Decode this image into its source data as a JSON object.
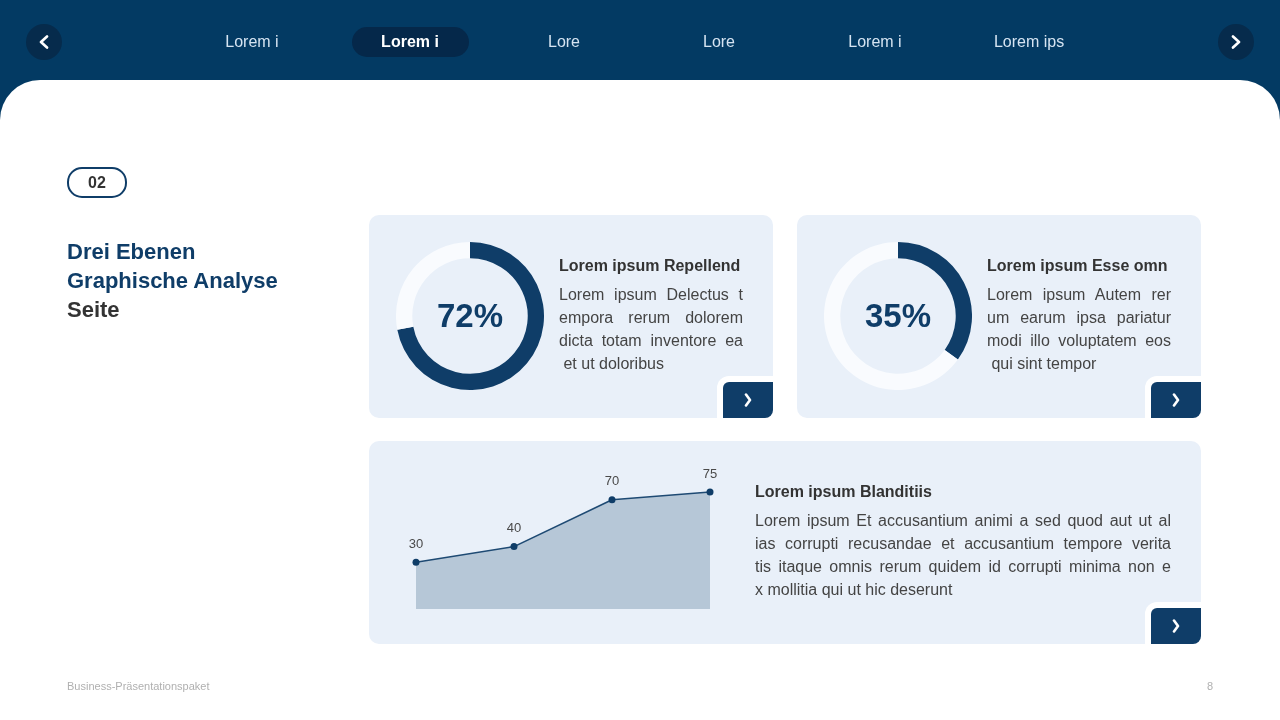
{
  "chart_data": [
    {
      "type": "other",
      "title": "Drei Ebenen Graphische Analyse",
      "subtitle": "Seite",
      "annotations": [
        "Lorem i",
        "Lorem i",
        "Lore",
        "Lore",
        "Lorem i",
        "Lorem ips",
        "02",
        "Business-Präsentationspaket",
        "8"
      ]
    },
    {
      "type": "donut",
      "title": "Lorem ipsum Repellend",
      "subtitle": "Lorem ipsum Delectus t\nempora rerum dolorem\ndicta totam inventore ea\n et ut doloribus",
      "categories": [
        null,
        null
      ],
      "values": [
        72,
        28
      ],
      "colors": [
        "#0f3d68",
        "#f9fbfe"
      ],
      "annotations": [
        "72%"
      ]
    },
    {
      "type": "donut",
      "title": "Lorem ipsum Esse omn",
      "subtitle": "Lorem ipsum Autem rer\num earum ipsa pariatur\nmodi illo voluptatem eos\n qui sint tempor",
      "categories": [
        null,
        null
      ],
      "values": [
        35,
        65
      ],
      "colors": [
        "#0f3d68",
        "#f9fbfe"
      ],
      "annotations": [
        "35%"
      ]
    },
    {
      "type": "area",
      "title": "Lorem ipsum Blanditiis",
      "subtitle": "Lorem ipsum Et accusantium animi a sed quod aut ut al\nias corrupti recusandae et accusantium tempore verita\ntis itaque omnis rerum quidem id corrupti minima non e\nx mollitia qui ut hic deserunt",
      "categories": [
        null,
        null,
        null,
        null
      ],
      "values": [
        30,
        40,
        70,
        75
      ],
      "color": "#1e4a73",
      "data_labels": true,
      "marker": "circle",
      "tick_labels": false
    }
  ]
}
